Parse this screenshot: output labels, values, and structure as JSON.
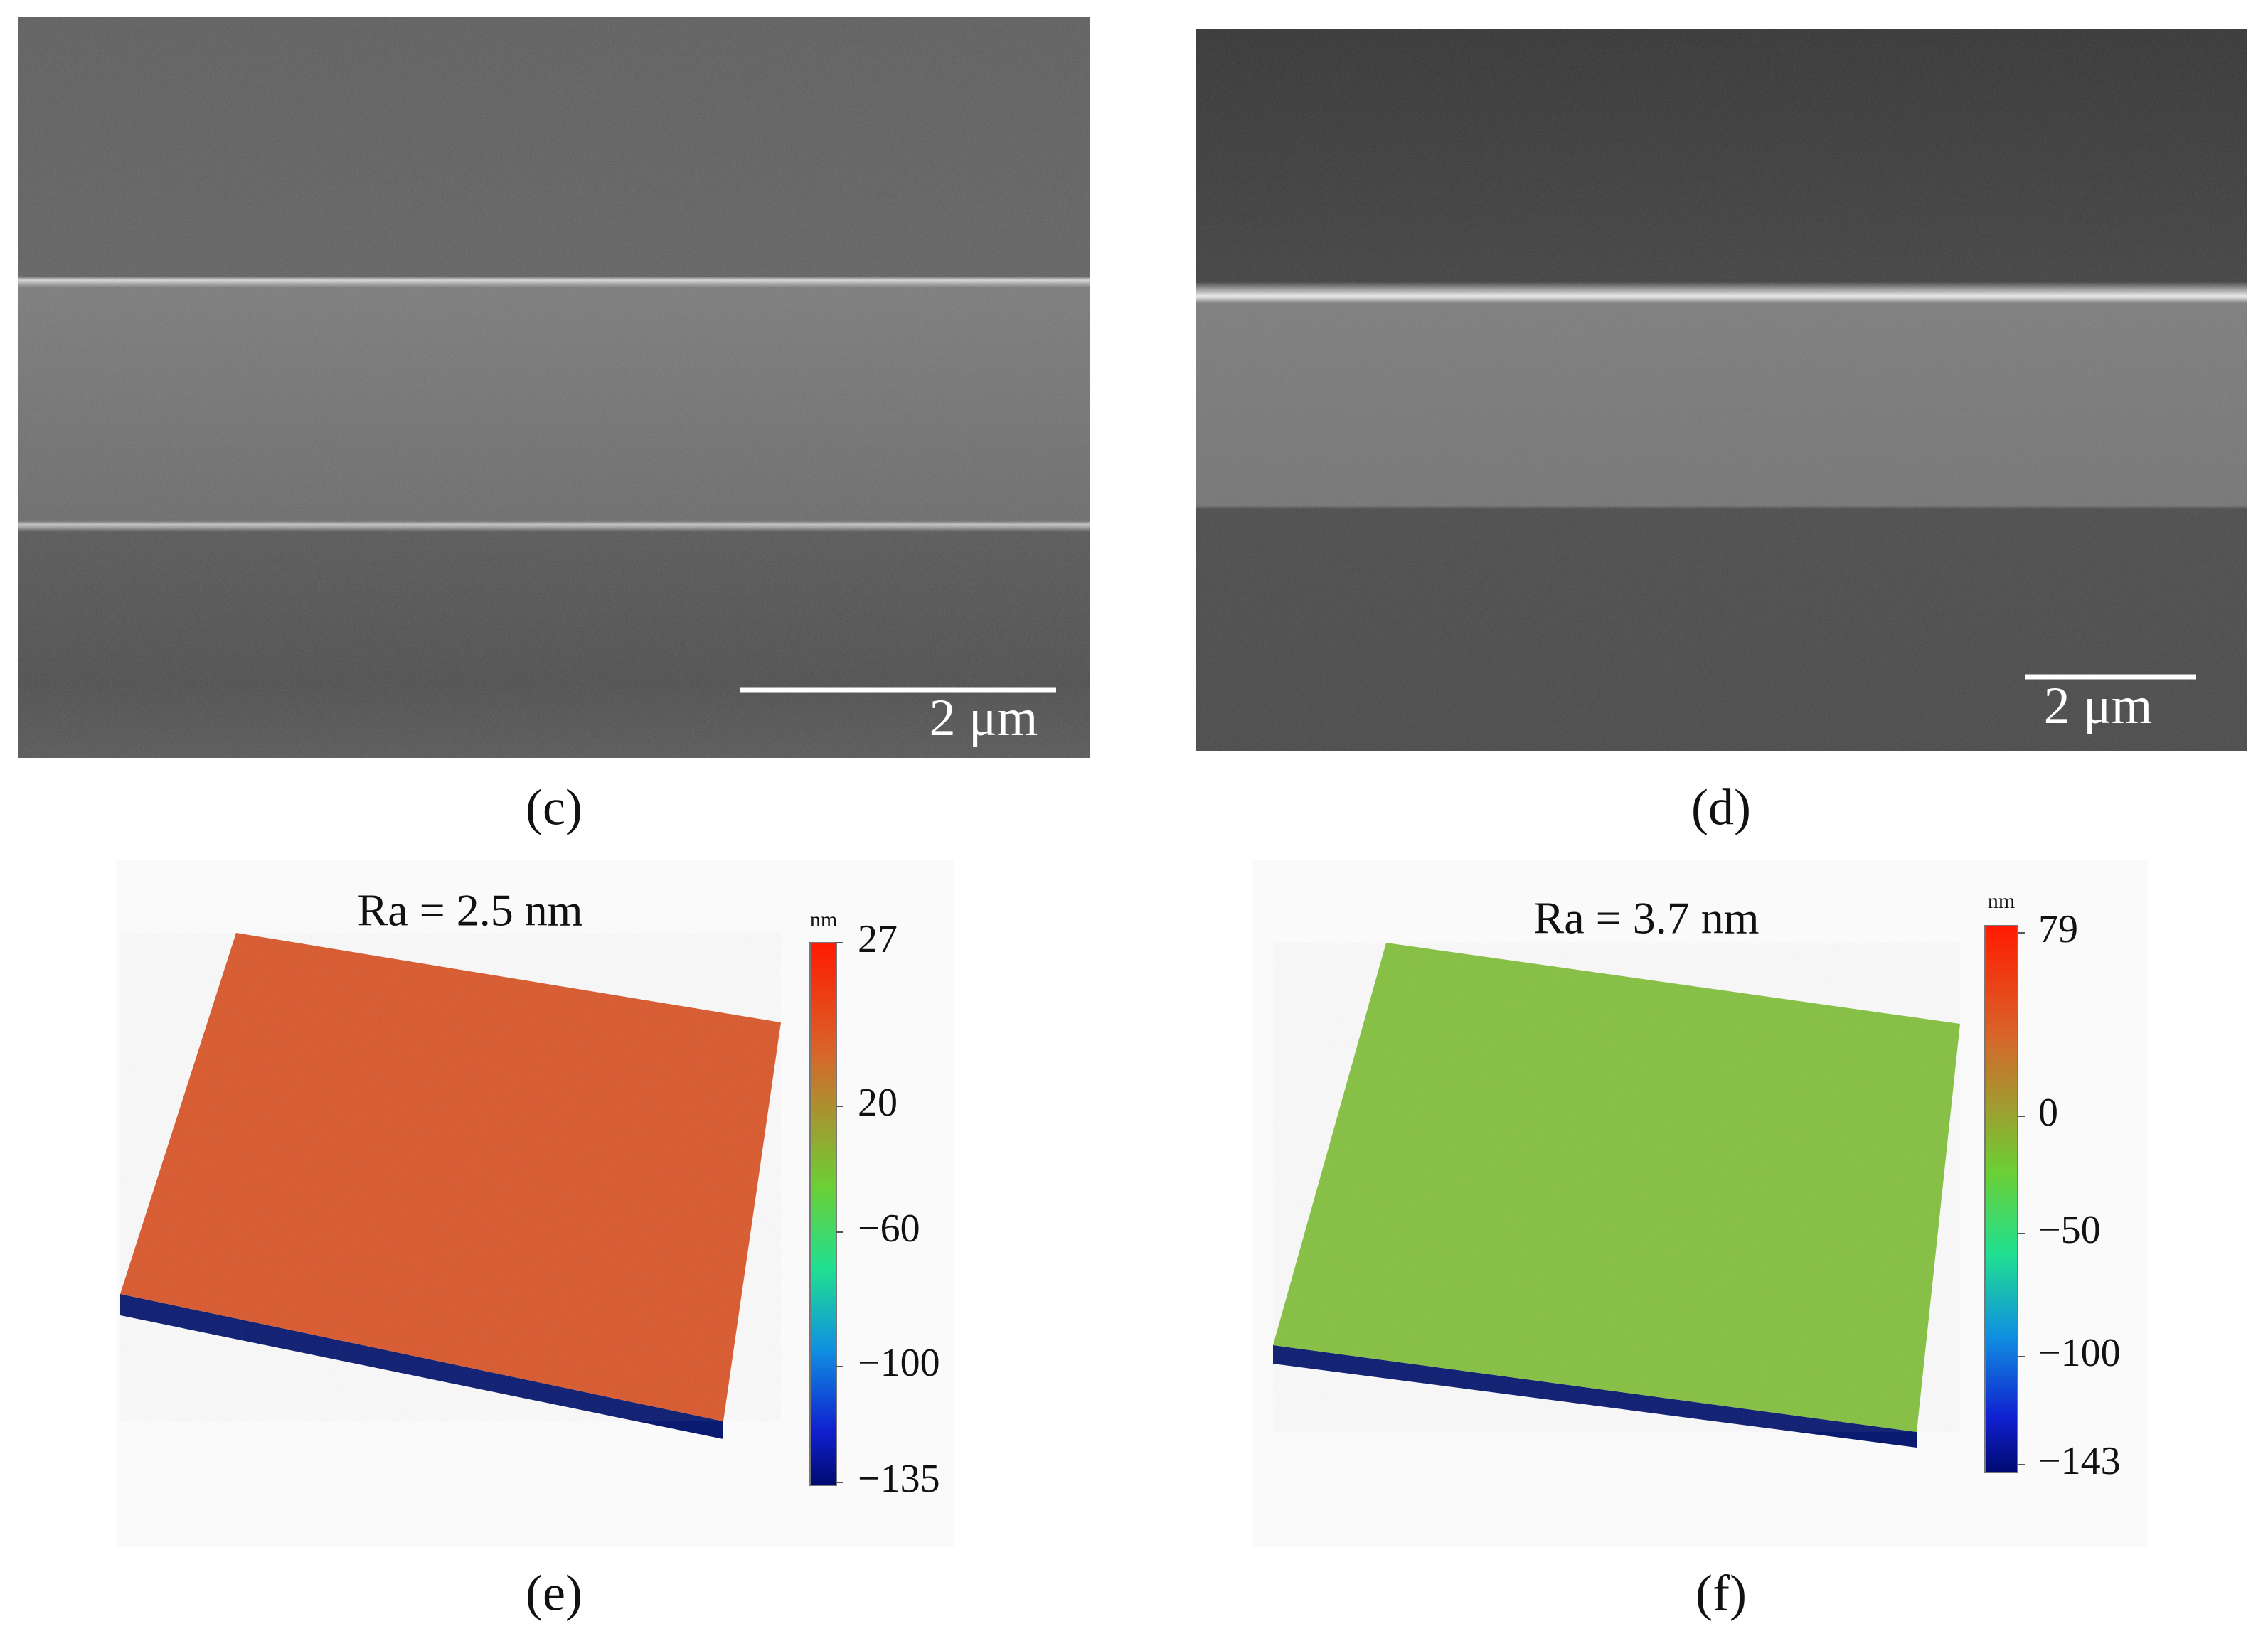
{
  "panels": [
    {
      "label": "(c)",
      "scale_bar": "2 μm"
    },
    {
      "label": "(d)",
      "scale_bar": "2 μm"
    },
    {
      "label": "(e)",
      "roughness": "Ra = 2.5 nm",
      "unit": "nm",
      "colorbar_ticks": [
        "27",
        "20",
        "−60",
        "−100",
        "−135"
      ]
    },
    {
      "label": "(f)",
      "roughness": "Ra = 3.7 nm",
      "unit": "nm",
      "colorbar_ticks": [
        "79",
        "0",
        "−50",
        "−100",
        "−143"
      ]
    }
  ]
}
